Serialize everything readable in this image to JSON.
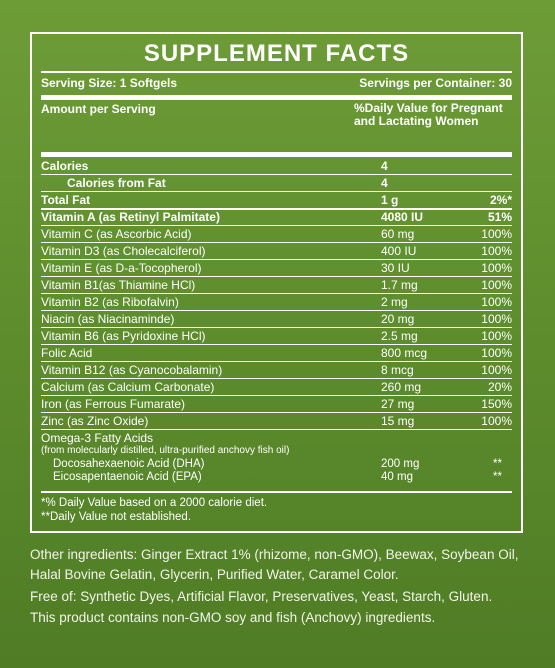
{
  "title": "SUPPLEMENT FACTS",
  "serving": {
    "size": "Serving Size: 1 Softgels",
    "per_container": "Servings per Container: 30"
  },
  "header": {
    "amount": "Amount per Serving",
    "dv": "%Daily Value for Pregnant and Lactating Women"
  },
  "calories": [
    {
      "name": "Calories",
      "amount": "4",
      "dv": ""
    },
    {
      "name": "Calories from Fat",
      "amount": "4",
      "dv": ""
    }
  ],
  "total_fat": {
    "name": "Total Fat",
    "amount": "1 g",
    "dv": "2%*"
  },
  "nutrients": [
    {
      "name": "Vitamin A (as Retinyl Palmitate)",
      "amount": "4080 IU",
      "dv": "51%"
    },
    {
      "name": "Vitamin C (as Ascorbic Acid)",
      "amount": "60 mg",
      "dv": "100%"
    },
    {
      "name": "Vitamin D3 (as Cholecalciferol)",
      "amount": "400 IU",
      "dv": "100%"
    },
    {
      "name": "Vitamin E (as D-a-Tocopherol)",
      "amount": "30 IU",
      "dv": "100%"
    },
    {
      "name": "Vitamin B1(as Thiamine HCl)",
      "amount": "1.7 mg",
      "dv": "100%"
    },
    {
      "name": "Vitamin B2 (as Ribofalvin)",
      "amount": "2 mg",
      "dv": "100%"
    },
    {
      "name": "Niacin (as Niacinaminde)",
      "amount": "20 mg",
      "dv": "100%"
    },
    {
      "name": "Vitamin B6 (as Pyridoxine HCl)",
      "amount": "2.5 mg",
      "dv": "100%"
    },
    {
      "name": "Folic Acid",
      "amount": "800 mcg",
      "dv": "100%"
    },
    {
      "name": "Vitamin B12 (as Cyanocobalamin)",
      "amount": "8 mcg",
      "dv": "100%"
    },
    {
      "name": "Calcium (as Calcium Carbonate)",
      "amount": "260 mg",
      "dv": "20%"
    },
    {
      "name": "Iron (as Ferrous Fumarate)",
      "amount": "27 mg",
      "dv": "150%"
    },
    {
      "name": "Zinc (as Zinc Oxide)",
      "amount": "15 mg",
      "dv": "100%"
    }
  ],
  "omega": {
    "title": "Omega-3 Fatty Acids",
    "subtitle": "(from molecularly distilled, ultra-purified anchovy fish oil)",
    "items": [
      {
        "name": "Docosahexaenoic Acid (DHA)",
        "amount": "200 mg",
        "dv": "**"
      },
      {
        "name": "Eicosapentaenoic Acid (EPA)",
        "amount": "40 mg",
        "dv": "**"
      }
    ]
  },
  "footnotes": [
    "*% Daily Value based on a 2000 calorie diet.",
    "**Daily Value not established."
  ],
  "other_ingredients": "Other ingredients: Ginger Extract 1% (rhizome, non-GMO), Beewax, Soybean Oil, Halal Bovine Gelatin, Glycerin, Purified Water, Caramel Color.",
  "free_of": "Free of: Synthetic Dyes, Artificial Flavor, Preservatives, Yeast, Starch, Gluten.",
  "contains": "This product contains non-GMO soy and fish (Anchovy) ingredients.",
  "colors": {
    "background": "#5c8b2c",
    "text": "#ffffff"
  }
}
